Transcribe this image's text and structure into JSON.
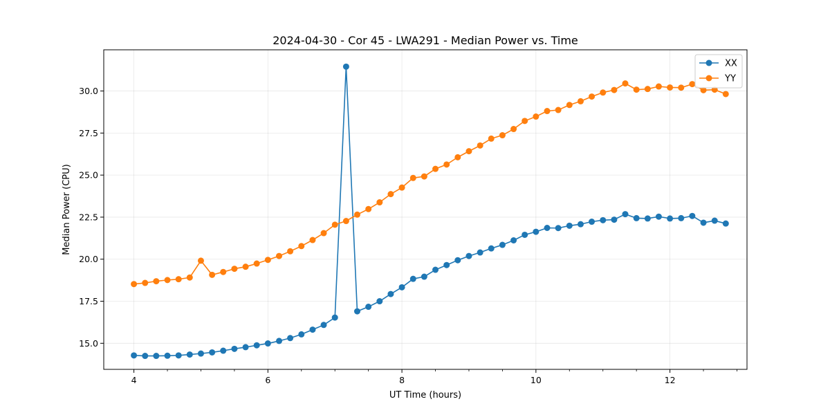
{
  "chart_data": {
    "type": "line",
    "title": "2024-04-30 - Cor 45 - LWA291 - Median Power vs. Time",
    "xlabel": "UT Time (hours)",
    "ylabel": "Median Power (CPU)",
    "xlim": [
      3.55,
      13.15
    ],
    "ylim": [
      13.45,
      32.45
    ],
    "xticks": [
      4,
      6,
      8,
      10,
      12
    ],
    "xtick_labels": [
      "4",
      "6",
      "8",
      "10",
      "12"
    ],
    "yticks": [
      15.0,
      17.5,
      20.0,
      22.5,
      25.0,
      27.5,
      30.0
    ],
    "ytick_labels": [
      "15.0",
      "17.5",
      "20.0",
      "22.5",
      "25.0",
      "27.5",
      "30.0"
    ],
    "x": [
      4.0,
      4.167,
      4.333,
      4.5,
      4.667,
      4.833,
      5.0,
      5.167,
      5.333,
      5.5,
      5.667,
      5.833,
      6.0,
      6.167,
      6.333,
      6.5,
      6.667,
      6.833,
      7.0,
      7.167,
      7.333,
      7.5,
      7.667,
      7.833,
      8.0,
      8.167,
      8.333,
      8.5,
      8.667,
      8.833,
      9.0,
      9.167,
      9.333,
      9.5,
      9.667,
      9.833,
      10.0,
      10.167,
      10.333,
      10.5,
      10.667,
      10.833,
      11.0,
      11.167,
      11.333,
      11.5,
      11.667,
      11.833,
      12.0,
      12.167,
      12.333,
      12.5,
      12.667,
      12.833
    ],
    "series": [
      {
        "name": "XX",
        "color": "#1f77b4",
        "values": [
          14.28,
          14.25,
          14.25,
          14.26,
          14.28,
          14.33,
          14.39,
          14.46,
          14.56,
          14.67,
          14.77,
          14.88,
          14.99,
          15.14,
          15.31,
          15.53,
          15.81,
          16.09,
          16.53,
          31.45,
          16.9,
          17.17,
          17.5,
          17.93,
          18.33,
          18.83,
          18.96,
          19.37,
          19.65,
          19.94,
          20.19,
          20.4,
          20.64,
          20.85,
          21.12,
          21.45,
          21.63,
          21.86,
          21.85,
          21.99,
          22.08,
          22.23,
          22.32,
          22.35,
          22.68,
          22.44,
          22.42,
          22.53,
          22.42,
          22.44,
          22.57,
          22.17,
          22.29,
          22.12
        ]
      },
      {
        "name": "YY",
        "color": "#ff7f0e",
        "values": [
          18.52,
          18.59,
          18.69,
          18.76,
          18.81,
          18.91,
          19.91,
          19.07,
          19.24,
          19.43,
          19.55,
          19.74,
          19.96,
          20.19,
          20.47,
          20.78,
          21.14,
          21.55,
          22.05,
          22.27,
          22.65,
          22.98,
          23.38,
          23.87,
          24.26,
          24.83,
          24.92,
          25.37,
          25.63,
          26.06,
          26.42,
          26.76,
          27.17,
          27.37,
          27.74,
          28.22,
          28.48,
          28.81,
          28.87,
          29.17,
          29.39,
          29.67,
          29.91,
          30.06,
          30.45,
          30.08,
          30.12,
          30.27,
          30.21,
          30.2,
          30.41,
          30.05,
          30.08,
          29.82
        ]
      }
    ],
    "legend_position": "top-right",
    "grid": true
  }
}
